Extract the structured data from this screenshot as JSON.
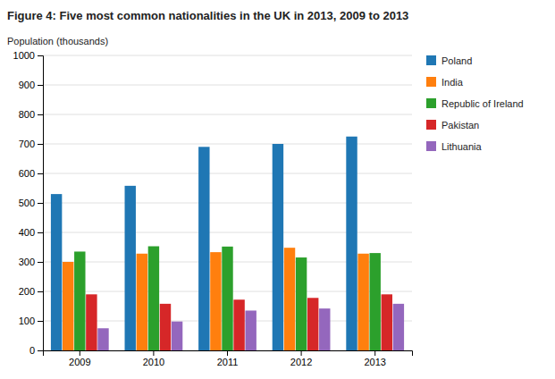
{
  "chart_data": {
    "type": "bar",
    "title": "Figure 4: Five most common nationalities in the UK in 2013, 2009 to 2013",
    "y_label": "Population (thousands)",
    "categories": [
      "2009",
      "2010",
      "2011",
      "2012",
      "2013"
    ],
    "series": [
      {
        "name": "Poland",
        "values": [
          530,
          558,
          690,
          700,
          725
        ]
      },
      {
        "name": "India",
        "values": [
          300,
          328,
          333,
          348,
          328
        ]
      },
      {
        "name": "Republic of Ireland",
        "values": [
          335,
          353,
          352,
          315,
          330
        ]
      },
      {
        "name": "Pakistan",
        "values": [
          190,
          158,
          172,
          178,
          190
        ]
      },
      {
        "name": "Lithuania",
        "values": [
          75,
          98,
          135,
          142,
          158
        ]
      }
    ],
    "ylim": [
      0,
      1000
    ],
    "yticks": [
      0,
      100,
      200,
      300,
      400,
      500,
      600,
      700,
      800,
      900,
      1000
    ],
    "grid": true,
    "legend": "right"
  }
}
